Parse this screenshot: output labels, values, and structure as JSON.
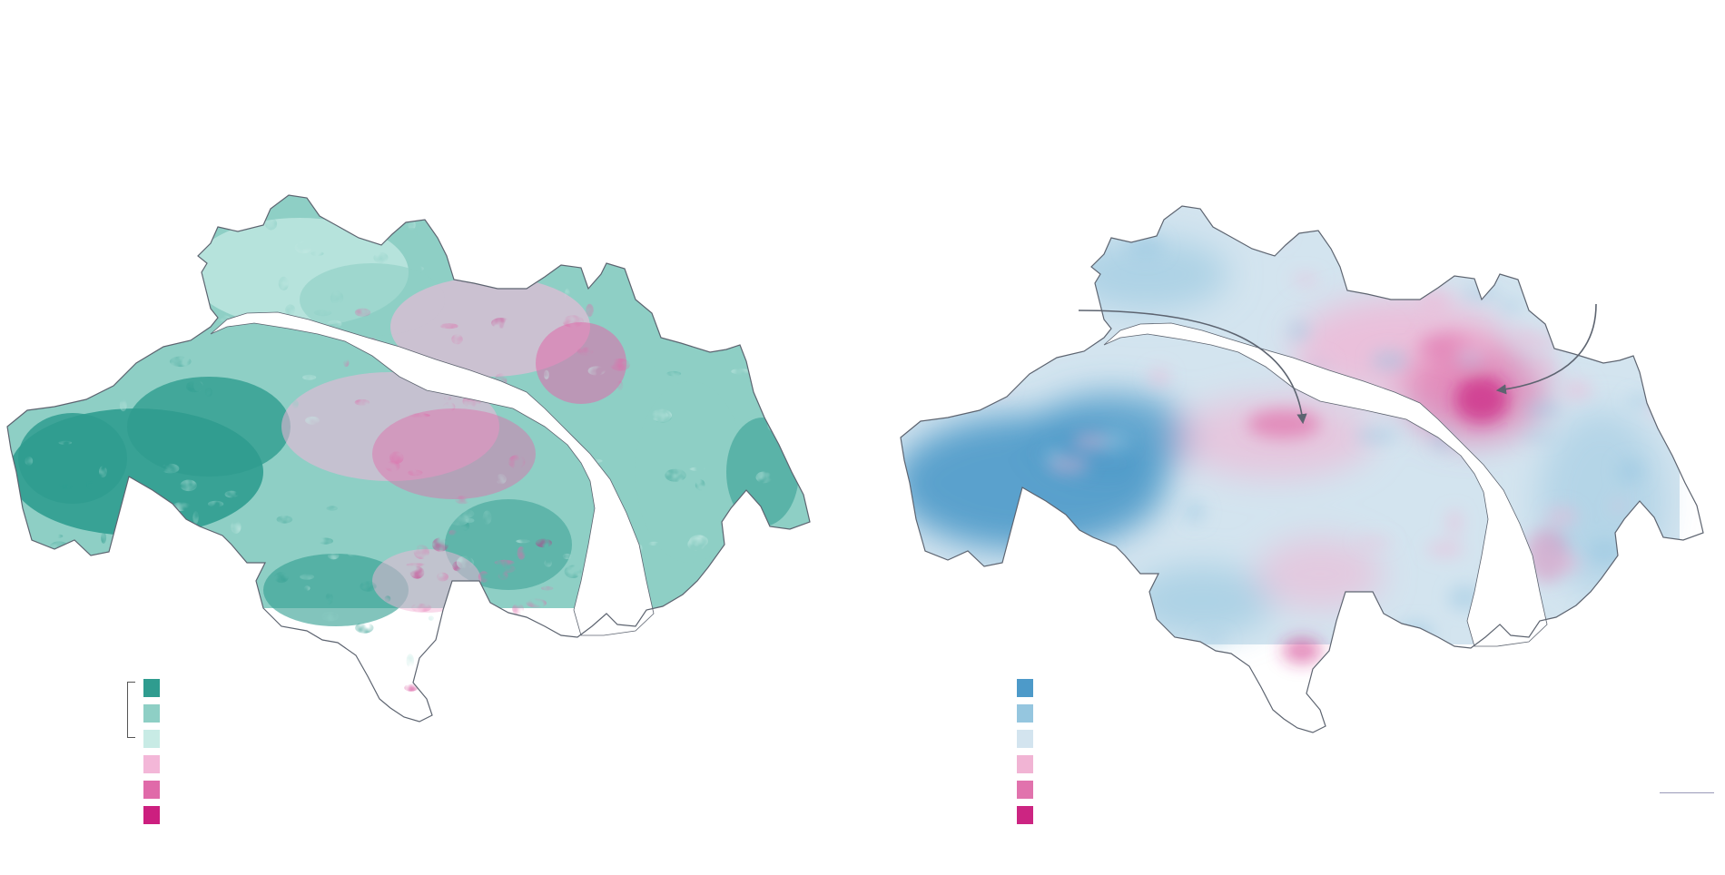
{
  "colors": {
    "vegetation_dense": "#2f9c8f",
    "vegetation_medium": "#8ecfc5",
    "vegetation_light": "#c8ebe5",
    "sealed_light": "#f3b7d8",
    "sealed_medium": "#e06aa9",
    "sealed_dense": "#cc1f7f",
    "temp_cold": "#4d9ac9",
    "temp_cool": "#95c6df",
    "temp_mild": "#d3e4ef",
    "temp_warm": "#f1b4d4",
    "temp_hot": "#e173ad",
    "temp_hottest": "#cc2582",
    "map_outline": "#5d6470",
    "river": "#ffffff",
    "arrow": "#5d6470",
    "scale_bar": "#9a9ab8"
  },
  "maps": [
    {
      "theme": "vegetation-and-sealing"
    },
    {
      "theme": "surface-temperature"
    }
  ],
  "legends": [
    {
      "swatches": [
        "vegetation_dense",
        "vegetation_medium",
        "vegetation_light",
        "sealed_light",
        "sealed_medium",
        "sealed_dense"
      ],
      "bracket_spans": 3
    },
    {
      "swatches": [
        "temp_cold",
        "temp_cool",
        "temp_mild",
        "temp_warm",
        "temp_hot",
        "temp_hottest"
      ],
      "bracket_spans": 0
    }
  ],
  "annotations": {
    "arrows": 2,
    "scale_bar": true
  }
}
